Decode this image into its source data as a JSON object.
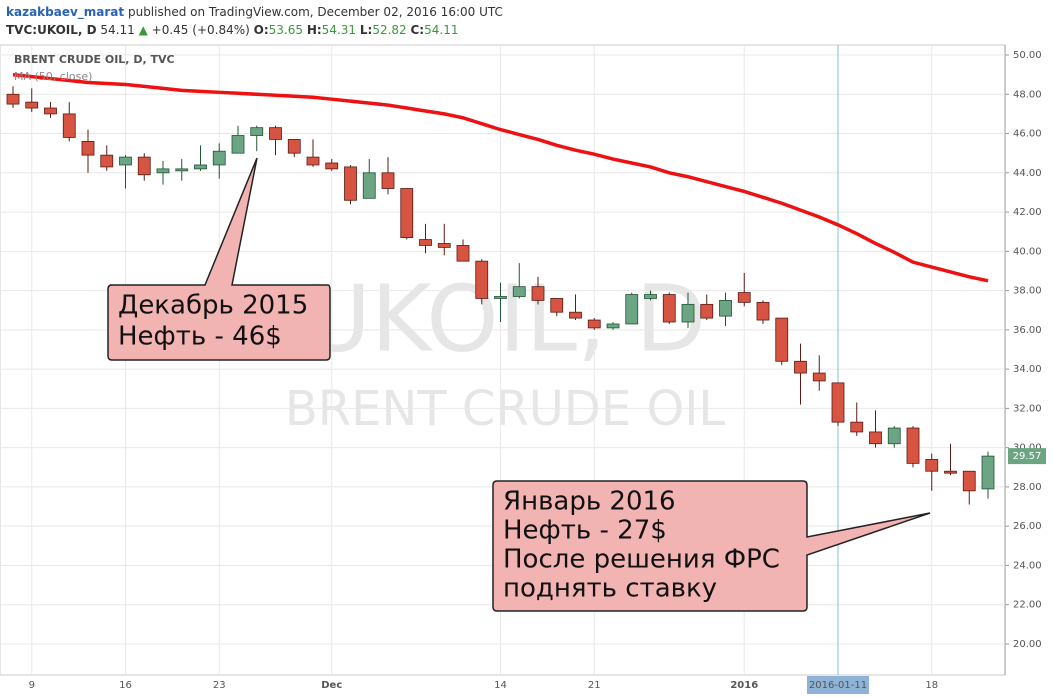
{
  "header": {
    "author": "kazakbaev_marat",
    "published": " published on TradingView.com, December 02, 2016 16:00 UTC",
    "symbol": "TVC:UKOIL, D",
    "price": "54.11",
    "arrow": "▲",
    "change": "+0.45 (+0.84%)",
    "o_label": "O:",
    "o": "53.65",
    "h_label": "H:",
    "h": "54.31",
    "l_label": "L:",
    "l": "52.82",
    "c_label": "C:",
    "c": "54.11"
  },
  "chart_data": {
    "type": "candlestick",
    "title": "BRENT CRUDE OIL, D, TVC",
    "watermark": [
      "UKOIL, D",
      "BRENT CRUDE OIL"
    ],
    "categories": [
      null,
      "9",
      null,
      null,
      null,
      null,
      "16",
      null,
      null,
      null,
      null,
      "23",
      null,
      null,
      null,
      null,
      null,
      "Dec",
      null,
      null,
      null,
      null,
      null,
      null,
      null,
      null,
      "14",
      null,
      null,
      null,
      null,
      "21",
      null,
      null,
      null,
      null,
      null,
      null,
      null,
      "2016",
      null,
      null,
      null,
      null,
      "2016-01-11",
      null,
      null,
      null,
      null,
      "18",
      null,
      null,
      null
    ],
    "open": [
      48.0,
      47.6,
      47.3,
      47.0,
      45.6,
      44.9,
      44.4,
      44.8,
      44.0,
      44.1,
      44.2,
      44.4,
      45.0,
      45.9,
      46.3,
      45.7,
      44.8,
      44.5,
      44.3,
      42.7,
      44.0,
      43.2,
      40.6,
      40.4,
      40.3,
      39.5,
      37.6,
      37.7,
      38.2,
      37.6,
      36.9,
      36.5,
      36.1,
      36.3,
      37.6,
      37.8,
      36.4,
      37.3,
      36.7,
      37.9,
      37.4,
      36.6,
      34.4,
      33.8,
      33.3,
      31.3,
      30.8,
      30.2,
      31.0,
      29.4,
      28.8,
      28.8,
      27.9
    ],
    "high": [
      48.4,
      48.3,
      47.6,
      47.6,
      46.2,
      45.4,
      44.9,
      45.0,
      44.6,
      44.7,
      45.4,
      45.5,
      46.4,
      46.4,
      46.4,
      45.7,
      45.7,
      44.7,
      44.4,
      44.7,
      44.8,
      43.2,
      41.4,
      41.4,
      40.6,
      39.6,
      38.4,
      39.4,
      38.7,
      37.6,
      37.8,
      36.6,
      36.4,
      37.9,
      38.0,
      37.9,
      37.9,
      37.8,
      37.9,
      38.9,
      37.5,
      36.6,
      35.3,
      34.7,
      33.3,
      32.3,
      31.9,
      31.1,
      31.1,
      29.7,
      30.2,
      28.8,
      29.8
    ],
    "low": [
      47.3,
      47.1,
      46.8,
      45.6,
      44.0,
      44.1,
      43.2,
      43.6,
      43.4,
      43.6,
      44.1,
      43.7,
      45.0,
      45.1,
      44.9,
      44.8,
      44.3,
      44.1,
      42.4,
      42.7,
      42.9,
      40.6,
      39.9,
      39.8,
      39.5,
      37.3,
      36.4,
      37.6,
      37.3,
      36.7,
      36.5,
      36.0,
      36.0,
      36.3,
      37.5,
      36.3,
      36.1,
      36.5,
      36.2,
      37.2,
      36.3,
      34.2,
      32.2,
      32.9,
      31.1,
      30.6,
      30.0,
      30.0,
      29.0,
      27.8,
      28.6,
      27.1,
      27.4
    ],
    "close": [
      47.5,
      47.3,
      47.0,
      45.8,
      44.9,
      44.3,
      44.8,
      43.9,
      44.2,
      44.2,
      44.4,
      45.1,
      45.9,
      46.3,
      45.7,
      45.0,
      44.4,
      44.2,
      42.6,
      44.0,
      43.2,
      40.7,
      40.3,
      40.2,
      39.5,
      37.6,
      37.7,
      38.2,
      37.5,
      36.9,
      36.6,
      36.1,
      36.3,
      37.8,
      37.8,
      36.4,
      37.3,
      36.6,
      37.5,
      37.4,
      36.5,
      34.4,
      33.8,
      33.4,
      31.3,
      30.8,
      30.2,
      31.0,
      29.2,
      28.8,
      28.7,
      27.8,
      29.57
    ],
    "up_color": "#6ba583",
    "down_color": "#d75442",
    "series": [
      {
        "name": "MA (50, close)",
        "color": "#ee1111",
        "values": [
          49.0,
          48.9,
          48.8,
          48.7,
          48.6,
          48.55,
          48.5,
          48.4,
          48.3,
          48.2,
          48.15,
          48.1,
          48.05,
          48.0,
          47.95,
          47.9,
          47.85,
          47.75,
          47.65,
          47.55,
          47.45,
          47.3,
          47.15,
          47.0,
          46.8,
          46.5,
          46.2,
          45.95,
          45.7,
          45.4,
          45.15,
          44.95,
          44.7,
          44.5,
          44.3,
          44.0,
          43.8,
          43.55,
          43.3,
          43.05,
          42.75,
          42.45,
          42.1,
          41.75,
          41.35,
          40.9,
          40.4,
          39.95,
          39.45,
          39.2,
          38.95,
          38.7,
          38.5
        ]
      }
    ],
    "last_price": 29.57,
    "ylim": [
      18.42,
      50.51
    ],
    "yticks": [
      {
        "value": 20,
        "label": "20.00"
      },
      {
        "value": 22,
        "label": "22.00"
      },
      {
        "value": 24,
        "label": "24.00"
      },
      {
        "value": 26,
        "label": "26.00"
      },
      {
        "value": 28,
        "label": "28.00"
      },
      {
        "value": 30,
        "label": "30.00"
      },
      {
        "value": 32,
        "label": "32.00"
      },
      {
        "value": 34,
        "label": "34.00"
      },
      {
        "value": 36,
        "label": "36.00"
      },
      {
        "value": 38,
        "label": "38.00"
      },
      {
        "value": 40,
        "label": "40.00"
      },
      {
        "value": 42,
        "label": "42.00"
      },
      {
        "value": 44,
        "label": "44.00"
      },
      {
        "value": 46,
        "label": "46.00"
      },
      {
        "value": 48,
        "label": "48.00"
      },
      {
        "value": 50,
        "label": "50.00"
      }
    ],
    "grid": true,
    "annotations": [
      {
        "lines": [
          "Декабрь 2015",
          "Нефть - 46$"
        ]
      },
      {
        "lines": [
          "Январь 2016",
          "Нефть - 27$",
          "После решения ФРС",
          "поднять ставку"
        ]
      }
    ]
  }
}
